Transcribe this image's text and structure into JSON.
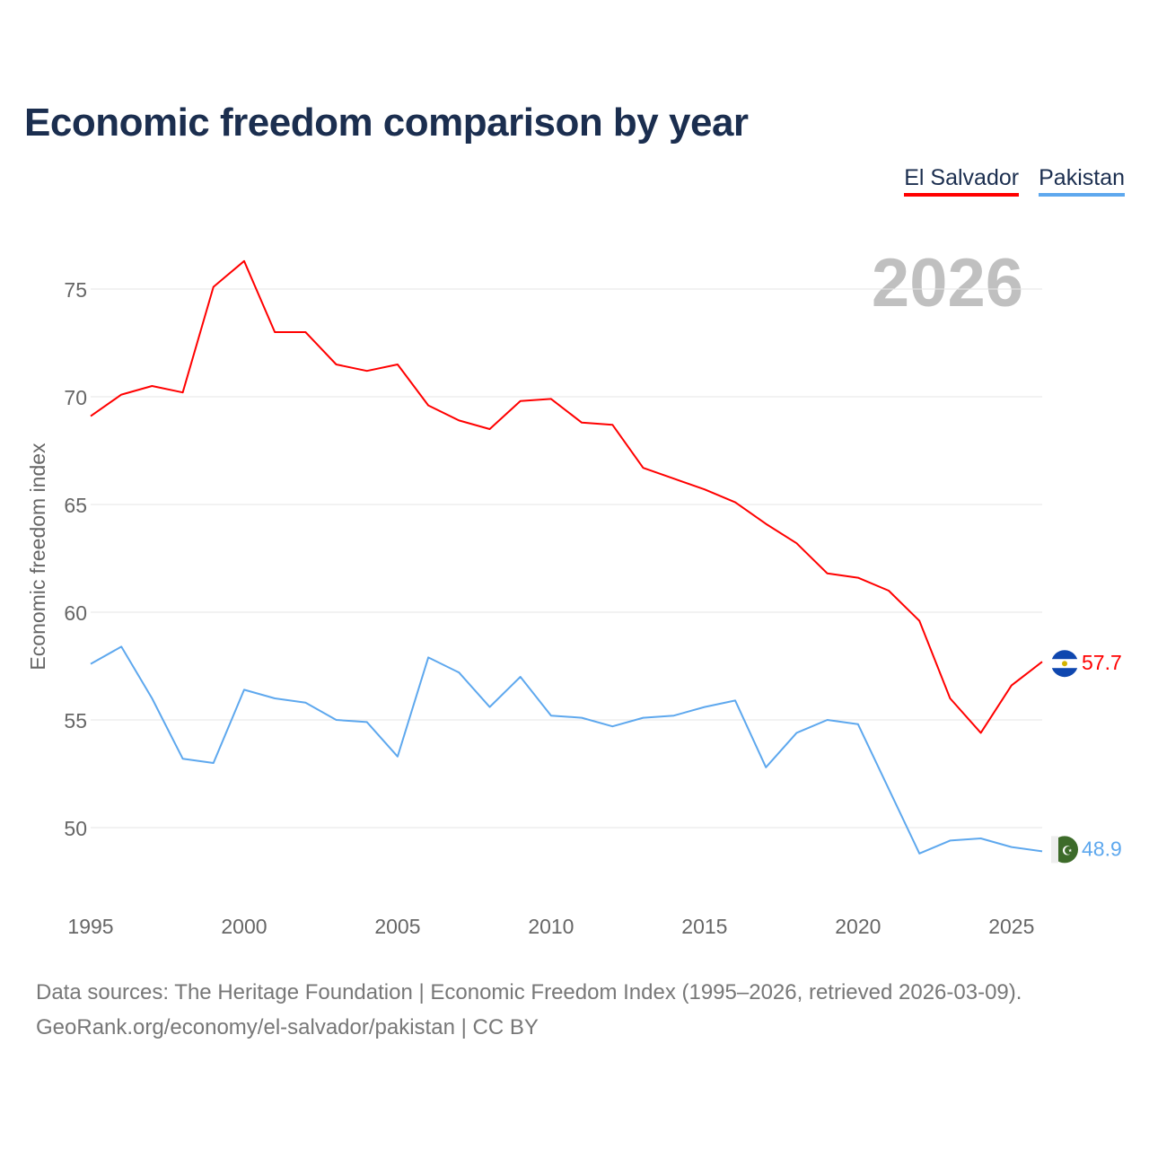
{
  "title": "Economic freedom comparison by year",
  "legend": [
    {
      "label": "El Salvador",
      "color": "#ff0000"
    },
    {
      "label": "Pakistan",
      "color": "#5ea8ee"
    }
  ],
  "footer": {
    "line1": "Data sources: The Heritage Foundation | Economic Freedom Index (1995–2026, retrieved 2026-03-09).",
    "line2": "GeoRank.org/economy/el-salvador/pakistan | CC BY"
  },
  "chart_data": {
    "type": "line",
    "title": "Economic freedom comparison by year",
    "ylabel": "Economic freedom index",
    "xlabel": "",
    "year_watermark": "2026",
    "x": [
      1995,
      1996,
      1997,
      1998,
      1999,
      2000,
      2001,
      2002,
      2003,
      2004,
      2005,
      2006,
      2007,
      2008,
      2009,
      2010,
      2011,
      2012,
      2013,
      2014,
      2015,
      2016,
      2017,
      2018,
      2019,
      2020,
      2021,
      2022,
      2023,
      2024,
      2025,
      2026
    ],
    "xticks": [
      "1995",
      "2000",
      "2005",
      "2010",
      "2015",
      "2020",
      "2025"
    ],
    "yticks": [
      "50",
      "55",
      "60",
      "65",
      "70",
      "75"
    ],
    "xlim": [
      1995,
      2026
    ],
    "ylim": [
      46.5,
      78
    ],
    "grid": true,
    "legend_position": "top-right",
    "series": [
      {
        "name": "El Salvador",
        "color": "#ff0000",
        "end_label": "57.7",
        "values": [
          69.1,
          70.1,
          70.5,
          70.2,
          75.1,
          76.3,
          73.0,
          73.0,
          71.5,
          71.2,
          71.5,
          69.6,
          68.9,
          68.5,
          69.8,
          69.9,
          68.8,
          68.7,
          66.7,
          66.2,
          65.7,
          65.1,
          64.1,
          63.2,
          61.8,
          61.6,
          61.0,
          59.6,
          56.0,
          54.4,
          56.6,
          57.7
        ]
      },
      {
        "name": "Pakistan",
        "color": "#5ea8ee",
        "end_label": "48.9",
        "values": [
          57.6,
          58.4,
          56.0,
          53.2,
          53.0,
          56.4,
          56.0,
          55.8,
          55.0,
          54.9,
          53.3,
          57.9,
          57.2,
          55.6,
          57.0,
          55.2,
          55.1,
          54.7,
          55.1,
          55.2,
          55.6,
          55.9,
          52.8,
          54.4,
          55.0,
          54.8,
          51.8,
          48.8,
          49.4,
          49.5,
          49.1,
          48.9
        ]
      }
    ]
  }
}
